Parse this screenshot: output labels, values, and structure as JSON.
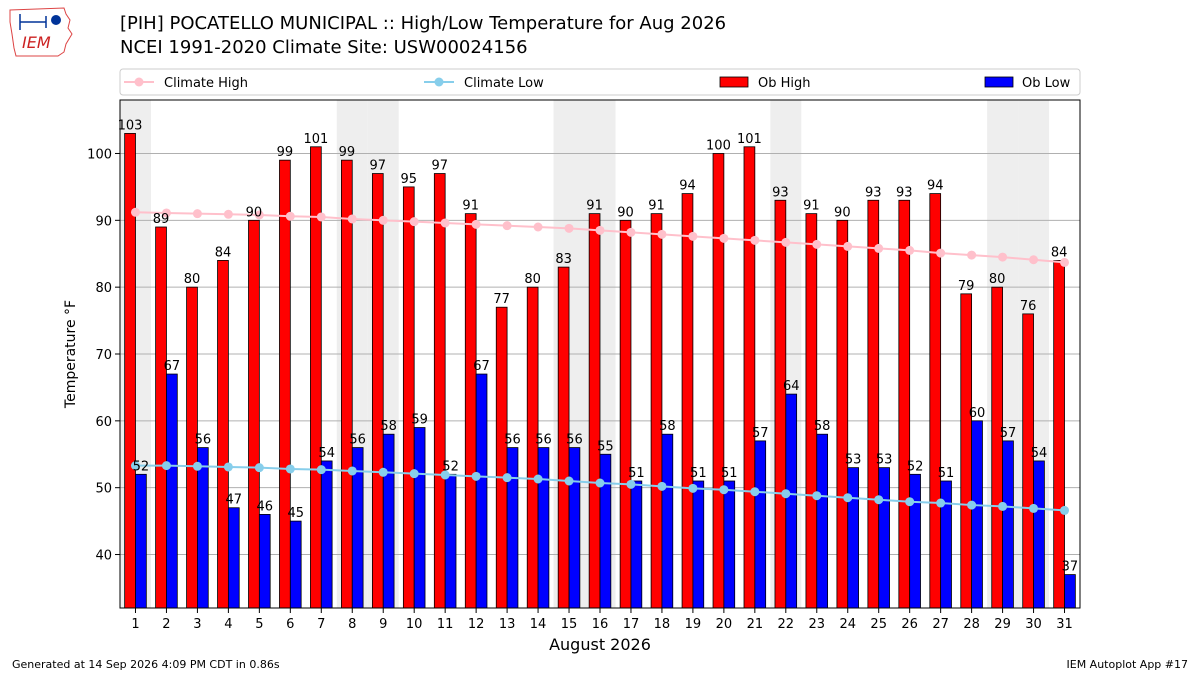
{
  "header": {
    "title_line1": "[PIH] POCATELLO MUNICIPAL :: High/Low Temperature for Aug 2026",
    "title_line2": "NCEI 1991-2020 Climate Site: USW00024156",
    "logo_text": "IEM"
  },
  "footer": {
    "generated": "Generated at 14 Sep 2026 4:09 PM CDT in 0.86s",
    "app": "IEM Autoplot App #17"
  },
  "colors": {
    "ob_high": "#ff0000",
    "ob_low": "#0000ff",
    "climate_high": "#ffc0cb",
    "climate_low": "#87ceeb",
    "weekend_shade": "#eeeeee",
    "grid": "#b0b0b0"
  },
  "chart_data": {
    "type": "bar",
    "xlabel": "August 2026",
    "ylabel": "Temperature °F",
    "ylim": [
      32,
      108
    ],
    "yticks": [
      40,
      50,
      60,
      70,
      80,
      90,
      100
    ],
    "grid": "horizontal",
    "legend_position": "top",
    "categories": [
      1,
      2,
      3,
      4,
      5,
      6,
      7,
      8,
      9,
      10,
      11,
      12,
      13,
      14,
      15,
      16,
      17,
      18,
      19,
      20,
      21,
      22,
      23,
      24,
      25,
      26,
      27,
      28,
      29,
      30,
      31
    ],
    "shaded_days": [
      1,
      8,
      9,
      15,
      16,
      22,
      29,
      30
    ],
    "series": [
      {
        "name": "Ob High",
        "kind": "bar",
        "values": [
          103,
          89,
          80,
          84,
          90,
          99,
          101,
          99,
          97,
          95,
          97,
          91,
          77,
          80,
          83,
          91,
          90,
          91,
          94,
          100,
          101,
          93,
          91,
          90,
          93,
          93,
          94,
          79,
          80,
          76,
          84
        ]
      },
      {
        "name": "Ob Low",
        "kind": "bar",
        "values": [
          52,
          67,
          56,
          47,
          46,
          45,
          54,
          56,
          58,
          59,
          52,
          67,
          56,
          56,
          56,
          55,
          51,
          58,
          51,
          51,
          57,
          64,
          58,
          53,
          53,
          52,
          51,
          60,
          57,
          54,
          37
        ]
      },
      {
        "name": "Climate High",
        "kind": "line",
        "values": [
          91.2,
          91.1,
          91.0,
          90.9,
          90.8,
          90.6,
          90.5,
          90.2,
          90.0,
          89.8,
          89.6,
          89.4,
          89.2,
          89.0,
          88.8,
          88.5,
          88.2,
          87.9,
          87.6,
          87.3,
          87.0,
          86.7,
          86.4,
          86.1,
          85.8,
          85.5,
          85.1,
          84.8,
          84.5,
          84.1,
          83.7
        ]
      },
      {
        "name": "Climate Low",
        "kind": "line",
        "values": [
          53.3,
          53.3,
          53.2,
          53.1,
          53.0,
          52.8,
          52.7,
          52.5,
          52.3,
          52.1,
          51.9,
          51.7,
          51.5,
          51.3,
          51.0,
          50.7,
          50.5,
          50.2,
          49.9,
          49.7,
          49.4,
          49.1,
          48.8,
          48.5,
          48.2,
          47.9,
          47.7,
          47.4,
          47.2,
          46.9,
          46.6
        ]
      }
    ]
  }
}
